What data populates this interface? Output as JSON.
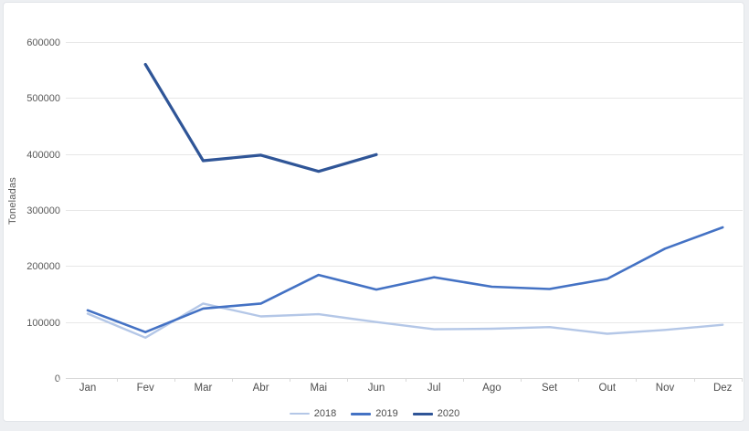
{
  "window": {
    "background_color": "#edeff2",
    "card_background": "#ffffff",
    "card_border_color": "#e2e5e9"
  },
  "chart_data": {
    "type": "line",
    "title": "",
    "y_axis_title": "Toneladas",
    "categories": [
      "Jan",
      "Fev",
      "Mar",
      "Abr",
      "Mai",
      "Jun",
      "Jul",
      "Ago",
      "Set",
      "Out",
      "Nov",
      "Dez"
    ],
    "y_ticks": [
      0,
      100000,
      200000,
      300000,
      400000,
      500000,
      600000
    ],
    "ylim": [
      0,
      600000
    ],
    "grid": true,
    "legend_position": "bottom",
    "axis_text_color": "#595959",
    "gridline_color": "#e7e7e7",
    "axis_line_color": "#d9d9d9",
    "series": [
      {
        "name": "2018",
        "color": "#b4c7e7",
        "thickness": 2.4,
        "values": [
          115000,
          72000,
          133000,
          110000,
          114000,
          100000,
          87000,
          88000,
          91000,
          79000,
          86000,
          95000
        ]
      },
      {
        "name": "2019",
        "color": "#4472c4",
        "thickness": 2.6,
        "values": [
          121000,
          82000,
          124000,
          133000,
          184000,
          158000,
          180000,
          163000,
          159000,
          177000,
          231000,
          269000
        ]
      },
      {
        "name": "2020",
        "color": "#2f5597",
        "thickness": 3.2,
        "values": [
          null,
          560000,
          388000,
          398000,
          369000,
          399000,
          null,
          null,
          null,
          null,
          null,
          null
        ]
      }
    ]
  }
}
